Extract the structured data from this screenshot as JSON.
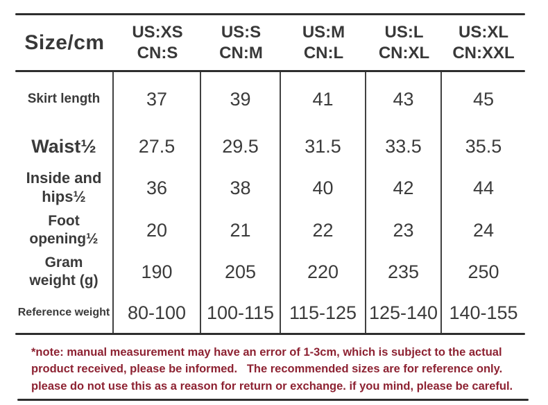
{
  "table": {
    "corner_label": "Size/cm",
    "unit": "cm",
    "size_headers": [
      {
        "us": "US:XS",
        "cn": "CN:S"
      },
      {
        "us": "US:S",
        "cn": "CN:M"
      },
      {
        "us": "US:M",
        "cn": "CN:L"
      },
      {
        "us": "US:L",
        "cn": "CN:XL"
      },
      {
        "us": "US:XL",
        "cn": "CN:XXL"
      }
    ],
    "rows": [
      {
        "label_line1": "Skirt length",
        "values": [
          "37",
          "39",
          "41",
          "43",
          "45"
        ]
      },
      {
        "label_line1": "Waist½",
        "values": [
          "27.5",
          "29.5",
          "31.5",
          "33.5",
          "35.5"
        ]
      },
      {
        "label_line1": "Inside and",
        "label_line2": "hips½",
        "values": [
          "36",
          "38",
          "40",
          "42",
          "44"
        ]
      },
      {
        "label_line1": "Foot",
        "label_line2": "opening½",
        "values": [
          "20",
          "21",
          "22",
          "23",
          "24"
        ]
      },
      {
        "label_line1": "Gram",
        "label_line2": "weight (g)",
        "values": [
          "190",
          "205",
          "220",
          "235",
          "250"
        ]
      },
      {
        "label_line1": "Reference weight",
        "values": [
          "80-100",
          "100-115",
          "115-125",
          "125-140",
          "140-155"
        ]
      }
    ]
  },
  "note": {
    "text": "*note: manual measurement may have an error of 1-3cm, which is subject to the actual product received, please be informed.   The recommended sizes are for reference only. please do not use this as a reason for return or exchange. if you mind, please be careful."
  },
  "colors": {
    "text": "#383838",
    "rule": "#2e2e2e",
    "note_red": "#8d2232",
    "background": "#ffffff"
  }
}
